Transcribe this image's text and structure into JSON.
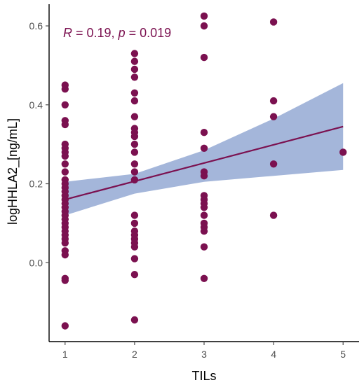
{
  "colors": {
    "point": "#7b1150",
    "line": "#7b1150",
    "band": "#9fb2d8",
    "axis": "#000000",
    "tick_text": "#4d4d4d",
    "annotation": "#7b1150"
  },
  "chart_data": {
    "type": "scatter",
    "title": "",
    "xlabel": "TILs",
    "ylabel": "logHHLA2_[ng/mL]",
    "xlim": [
      0.77,
      5.23
    ],
    "ylim": [
      -0.2,
      0.655
    ],
    "grid": false,
    "xticks": [
      1,
      2,
      3,
      4,
      5
    ],
    "yticks": [
      0.0,
      0.2,
      0.4,
      0.6
    ],
    "xtick_labels": [
      "1",
      "2",
      "3",
      "4",
      "5"
    ],
    "ytick_labels": [
      "0.0",
      "0.2",
      "0.4",
      "0.6"
    ],
    "annotation": {
      "r_symbol": "R",
      "r_value": " = 0.19, ",
      "p_symbol": "p",
      "p_value": " = 0.019"
    },
    "points": [
      {
        "x": 1,
        "y": 0.45
      },
      {
        "x": 1,
        "y": 0.44
      },
      {
        "x": 1,
        "y": 0.4
      },
      {
        "x": 1,
        "y": 0.36
      },
      {
        "x": 1,
        "y": 0.35
      },
      {
        "x": 1,
        "y": 0.3
      },
      {
        "x": 1,
        "y": 0.29
      },
      {
        "x": 1,
        "y": 0.28
      },
      {
        "x": 1,
        "y": 0.27
      },
      {
        "x": 1,
        "y": 0.25
      },
      {
        "x": 1,
        "y": 0.23
      },
      {
        "x": 1,
        "y": 0.21
      },
      {
        "x": 1,
        "y": 0.2
      },
      {
        "x": 1,
        "y": 0.19
      },
      {
        "x": 1,
        "y": 0.18
      },
      {
        "x": 1,
        "y": 0.17
      },
      {
        "x": 1,
        "y": 0.16
      },
      {
        "x": 1,
        "y": 0.15
      },
      {
        "x": 1,
        "y": 0.14
      },
      {
        "x": 1,
        "y": 0.13
      },
      {
        "x": 1,
        "y": 0.12
      },
      {
        "x": 1,
        "y": 0.11
      },
      {
        "x": 1,
        "y": 0.1
      },
      {
        "x": 1,
        "y": 0.09
      },
      {
        "x": 1,
        "y": 0.08
      },
      {
        "x": 1,
        "y": 0.07
      },
      {
        "x": 1,
        "y": 0.06
      },
      {
        "x": 1,
        "y": 0.05
      },
      {
        "x": 1,
        "y": 0.03
      },
      {
        "x": 1,
        "y": 0.02
      },
      {
        "x": 1,
        "y": -0.04
      },
      {
        "x": 1,
        "y": -0.045
      },
      {
        "x": 1,
        "y": -0.16
      },
      {
        "x": 2,
        "y": 0.53
      },
      {
        "x": 2,
        "y": 0.51
      },
      {
        "x": 2,
        "y": 0.49
      },
      {
        "x": 2,
        "y": 0.47
      },
      {
        "x": 2,
        "y": 0.43
      },
      {
        "x": 2,
        "y": 0.41
      },
      {
        "x": 2,
        "y": 0.37
      },
      {
        "x": 2,
        "y": 0.34
      },
      {
        "x": 2,
        "y": 0.33
      },
      {
        "x": 2,
        "y": 0.32
      },
      {
        "x": 2,
        "y": 0.3
      },
      {
        "x": 2,
        "y": 0.28
      },
      {
        "x": 2,
        "y": 0.25
      },
      {
        "x": 2,
        "y": 0.23
      },
      {
        "x": 2,
        "y": 0.21
      },
      {
        "x": 2,
        "y": 0.12
      },
      {
        "x": 2,
        "y": 0.1
      },
      {
        "x": 2,
        "y": 0.08
      },
      {
        "x": 2,
        "y": 0.07
      },
      {
        "x": 2,
        "y": 0.06
      },
      {
        "x": 2,
        "y": 0.05
      },
      {
        "x": 2,
        "y": 0.04
      },
      {
        "x": 2,
        "y": 0.01
      },
      {
        "x": 2,
        "y": -0.03
      },
      {
        "x": 2,
        "y": -0.145
      },
      {
        "x": 3,
        "y": 0.625
      },
      {
        "x": 3,
        "y": 0.6
      },
      {
        "x": 3,
        "y": 0.52
      },
      {
        "x": 3,
        "y": 0.33
      },
      {
        "x": 3,
        "y": 0.29
      },
      {
        "x": 3,
        "y": 0.23
      },
      {
        "x": 3,
        "y": 0.22
      },
      {
        "x": 3,
        "y": 0.17
      },
      {
        "x": 3,
        "y": 0.16
      },
      {
        "x": 3,
        "y": 0.15
      },
      {
        "x": 3,
        "y": 0.14
      },
      {
        "x": 3,
        "y": 0.12
      },
      {
        "x": 3,
        "y": 0.1
      },
      {
        "x": 3,
        "y": 0.09
      },
      {
        "x": 3,
        "y": 0.08
      },
      {
        "x": 3,
        "y": 0.04
      },
      {
        "x": 3,
        "y": -0.04
      },
      {
        "x": 4,
        "y": 0.61
      },
      {
        "x": 4,
        "y": 0.41
      },
      {
        "x": 4,
        "y": 0.37
      },
      {
        "x": 4,
        "y": 0.25
      },
      {
        "x": 4,
        "y": 0.12
      },
      {
        "x": 5,
        "y": 0.28
      }
    ],
    "fit_line": [
      {
        "x": 1,
        "y": 0.16
      },
      {
        "x": 5,
        "y": 0.345
      }
    ],
    "confidence_band": {
      "upper": [
        {
          "x": 1,
          "y": 0.205
        },
        {
          "x": 2,
          "y": 0.225
        },
        {
          "x": 3,
          "y": 0.285
        },
        {
          "x": 4,
          "y": 0.365
        },
        {
          "x": 5,
          "y": 0.455
        }
      ],
      "lower": [
        {
          "x": 1,
          "y": 0.12
        },
        {
          "x": 2,
          "y": 0.175
        },
        {
          "x": 3,
          "y": 0.205
        },
        {
          "x": 4,
          "y": 0.22
        },
        {
          "x": 5,
          "y": 0.235
        }
      ]
    }
  }
}
